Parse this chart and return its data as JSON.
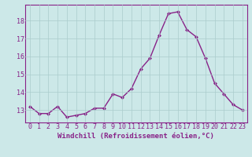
{
  "x": [
    0,
    1,
    2,
    3,
    4,
    5,
    6,
    7,
    8,
    9,
    10,
    11,
    12,
    13,
    14,
    15,
    16,
    17,
    18,
    19,
    20,
    21,
    22,
    23
  ],
  "y": [
    13.2,
    12.8,
    12.8,
    13.2,
    12.6,
    12.7,
    12.8,
    13.1,
    13.1,
    13.9,
    13.7,
    14.2,
    15.3,
    15.9,
    17.2,
    18.4,
    18.5,
    17.5,
    17.1,
    15.9,
    14.5,
    13.9,
    13.3,
    13.0
  ],
  "line_color": "#882288",
  "marker": "D",
  "marker_size": 2.0,
  "bg_color": "#cce8e8",
  "grid_color": "#aacccc",
  "xlim": [
    -0.5,
    23.5
  ],
  "ylim": [
    12.3,
    18.9
  ],
  "yticks": [
    13,
    14,
    15,
    16,
    17,
    18
  ],
  "xticks": [
    0,
    1,
    2,
    3,
    4,
    5,
    6,
    7,
    8,
    9,
    10,
    11,
    12,
    13,
    14,
    15,
    16,
    17,
    18,
    19,
    20,
    21,
    22,
    23
  ],
  "xlabel": "Windchill (Refroidissement éolien,°C)",
  "xlabel_fontsize": 6.5,
  "tick_fontsize": 6.0,
  "line_width": 1.0,
  "spine_color": "#882288"
}
